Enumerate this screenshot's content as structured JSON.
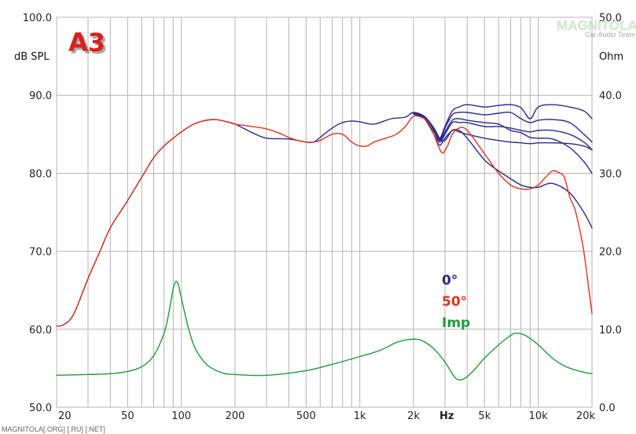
{
  "chart_data": {
    "type": "line",
    "logo": "A3",
    "watermark_top": "MAGNITOLA",
    "watermark_sub": "Car Audio Team",
    "watermark_bottom": "MAGNITOLA[.ORG] [.RU] [.NET]",
    "ylabel_left": "dB SPL",
    "ylabel_right": "Ohm",
    "xlabel": "Hz",
    "x_scale": "log",
    "xlim": [
      20,
      20000
    ],
    "ylim_left": [
      50,
      100
    ],
    "ylim_right": [
      0,
      50
    ],
    "grid": true,
    "x_ticks": [
      {
        "value": 20,
        "label": "20"
      },
      {
        "value": 50,
        "label": "50"
      },
      {
        "value": 100,
        "label": "100"
      },
      {
        "value": 200,
        "label": "200"
      },
      {
        "value": 500,
        "label": "500"
      },
      {
        "value": 1000,
        "label": "1k"
      },
      {
        "value": 2000,
        "label": "2k"
      },
      {
        "value": 5000,
        "label": "5k"
      },
      {
        "value": 10000,
        "label": "10k"
      },
      {
        "value": 20000,
        "label": "20k"
      }
    ],
    "y_ticks_left": [
      "50.0",
      "60.0",
      "70.0",
      "80.0",
      "90.0",
      "100.0"
    ],
    "y_ticks_right": [
      "0.0",
      "10.0",
      "20.0",
      "30.0",
      "40.0",
      "50.0"
    ],
    "legend": [
      {
        "label": "0°",
        "color": "#2a2a8a"
      },
      {
        "label": "50°",
        "color": "#e0341c"
      },
      {
        "label": "Imp",
        "color": "#1f9a3c"
      }
    ],
    "colors": {
      "axis_0deg": "#2a2a8a",
      "red_50deg": "#e0341c",
      "impedance": "#1f9a3c",
      "grid": "#b4b4b4",
      "logo_red": "#d8201c"
    },
    "series": [
      {
        "key": "spl_0",
        "axis": "left",
        "color": "#2a2a8a",
        "points": [
          [
            20,
            60.4
          ],
          [
            22,
            60.6
          ],
          [
            25,
            62
          ],
          [
            30,
            66.5
          ],
          [
            35,
            70
          ],
          [
            40,
            73
          ],
          [
            50,
            76.5
          ],
          [
            60,
            79.5
          ],
          [
            70,
            82
          ],
          [
            80,
            83.5
          ],
          [
            90,
            84.5
          ],
          [
            100,
            85.3
          ],
          [
            120,
            86.4
          ],
          [
            150,
            86.9
          ],
          [
            180,
            86.6
          ],
          [
            200,
            86.3
          ],
          [
            250,
            85.2
          ],
          [
            300,
            84.5
          ],
          [
            400,
            84.4
          ],
          [
            500,
            84
          ],
          [
            550,
            84
          ],
          [
            600,
            84.6
          ],
          [
            700,
            85.8
          ],
          [
            800,
            86.5
          ],
          [
            900,
            86.7
          ],
          [
            1000,
            86.6
          ],
          [
            1200,
            86.3
          ],
          [
            1500,
            87
          ],
          [
            1800,
            87.2
          ],
          [
            2000,
            87.8
          ],
          [
            2300,
            87.3
          ],
          [
            2600,
            85.8
          ],
          [
            2800,
            84.5
          ],
          [
            3000,
            84.2
          ],
          [
            3300,
            85.5
          ],
          [
            3600,
            85.3
          ],
          [
            4000,
            85
          ],
          [
            5000,
            84.5
          ],
          [
            6000,
            84.2
          ],
          [
            7000,
            84
          ],
          [
            8000,
            83.9
          ],
          [
            9000,
            83.8
          ],
          [
            10000,
            83.9
          ],
          [
            12000,
            83.9
          ],
          [
            15000,
            83.8
          ],
          [
            18000,
            83.5
          ],
          [
            20000,
            83
          ]
        ]
      },
      {
        "key": "spl_10",
        "axis": "left",
        "color": "#2a2a8a",
        "points": [
          [
            2000,
            87.7
          ],
          [
            2300,
            87.1
          ],
          [
            2600,
            85.4
          ],
          [
            2800,
            84
          ],
          [
            3000,
            85
          ],
          [
            3300,
            86.5
          ],
          [
            3600,
            86.5
          ],
          [
            4000,
            86.5
          ],
          [
            5000,
            86
          ],
          [
            6000,
            86
          ],
          [
            7000,
            85.8
          ],
          [
            8000,
            85.5
          ],
          [
            9000,
            85.3
          ],
          [
            10000,
            85.5
          ],
          [
            12000,
            85.5
          ],
          [
            15000,
            85
          ],
          [
            18000,
            84
          ],
          [
            20000,
            83
          ]
        ]
      },
      {
        "key": "spl_20",
        "axis": "left",
        "color": "#2a2a8a",
        "points": [
          [
            2000,
            87.7
          ],
          [
            2300,
            87.3
          ],
          [
            2600,
            85.8
          ],
          [
            2800,
            84.5
          ],
          [
            3000,
            86
          ],
          [
            3300,
            88
          ],
          [
            3600,
            88.5
          ],
          [
            4000,
            88.8
          ],
          [
            5000,
            88.5
          ],
          [
            6000,
            88.7
          ],
          [
            7000,
            88.8
          ],
          [
            8000,
            88.4
          ],
          [
            9000,
            87
          ],
          [
            10000,
            88.5
          ],
          [
            12000,
            88.8
          ],
          [
            15000,
            88.5
          ],
          [
            18000,
            88
          ],
          [
            20000,
            87
          ]
        ]
      },
      {
        "key": "spl_30",
        "axis": "left",
        "color": "#2a2a8a",
        "points": [
          [
            2000,
            87.7
          ],
          [
            2300,
            87.2
          ],
          [
            2600,
            85.7
          ],
          [
            2800,
            84.3
          ],
          [
            3000,
            85.8
          ],
          [
            3300,
            87.5
          ],
          [
            3600,
            87.8
          ],
          [
            4000,
            87.8
          ],
          [
            5000,
            87.5
          ],
          [
            6000,
            87.7
          ],
          [
            7000,
            87.8
          ],
          [
            8000,
            87
          ],
          [
            9000,
            86.5
          ],
          [
            10000,
            86.8
          ],
          [
            12000,
            86.9
          ],
          [
            15000,
            86.5
          ],
          [
            18000,
            85
          ],
          [
            20000,
            84
          ]
        ]
      },
      {
        "key": "spl_40",
        "axis": "left",
        "color": "#2a2a8a",
        "points": [
          [
            2000,
            87.6
          ],
          [
            2300,
            87
          ],
          [
            2600,
            85
          ],
          [
            2800,
            83.6
          ],
          [
            3000,
            84.5
          ],
          [
            3300,
            85.5
          ],
          [
            3600,
            85.5
          ],
          [
            4000,
            84.5
          ],
          [
            5000,
            81.7
          ],
          [
            6000,
            80.3
          ],
          [
            7000,
            79.3
          ],
          [
            8000,
            78.5
          ],
          [
            9000,
            78.2
          ],
          [
            10000,
            78.2
          ],
          [
            12000,
            78.7
          ],
          [
            15000,
            77.5
          ],
          [
            18000,
            75
          ],
          [
            20000,
            73
          ]
        ]
      },
      {
        "key": "spl_60",
        "axis": "left",
        "color": "#2a2a8a",
        "points": [
          [
            2000,
            87.6
          ],
          [
            2300,
            87
          ],
          [
            2600,
            85.6
          ],
          [
            2800,
            84.2
          ],
          [
            3000,
            85.3
          ],
          [
            3300,
            86.8
          ],
          [
            3600,
            87
          ],
          [
            4000,
            86.8
          ],
          [
            5000,
            86.5
          ],
          [
            6000,
            86.3
          ],
          [
            7000,
            85.5
          ],
          [
            8000,
            85.2
          ],
          [
            9000,
            84.6
          ],
          [
            10000,
            84.5
          ],
          [
            12000,
            84.4
          ],
          [
            15000,
            83.3
          ],
          [
            18000,
            81.5
          ],
          [
            20000,
            80
          ]
        ]
      },
      {
        "key": "spl_50",
        "axis": "left",
        "color": "#e0341c",
        "points": [
          [
            20,
            60.4
          ],
          [
            22,
            60.6
          ],
          [
            25,
            62
          ],
          [
            30,
            66.5
          ],
          [
            35,
            70
          ],
          [
            40,
            73
          ],
          [
            50,
            76.5
          ],
          [
            60,
            79.5
          ],
          [
            70,
            82
          ],
          [
            80,
            83.5
          ],
          [
            90,
            84.5
          ],
          [
            100,
            85.3
          ],
          [
            120,
            86.4
          ],
          [
            150,
            86.9
          ],
          [
            180,
            86.6
          ],
          [
            200,
            86.3
          ],
          [
            250,
            86
          ],
          [
            300,
            85.7
          ],
          [
            350,
            85.2
          ],
          [
            400,
            84.6
          ],
          [
            450,
            84.2
          ],
          [
            500,
            84
          ],
          [
            550,
            84
          ],
          [
            600,
            84.2
          ],
          [
            700,
            85
          ],
          [
            800,
            85
          ],
          [
            900,
            84
          ],
          [
            1000,
            83.5
          ],
          [
            1100,
            83.5
          ],
          [
            1200,
            84
          ],
          [
            1400,
            84.5
          ],
          [
            1600,
            85
          ],
          [
            1800,
            86
          ],
          [
            2000,
            87.3
          ],
          [
            2300,
            87
          ],
          [
            2500,
            86
          ],
          [
            2700,
            84
          ],
          [
            2900,
            82.6
          ],
          [
            3100,
            83.5
          ],
          [
            3300,
            85
          ],
          [
            3600,
            85.8
          ],
          [
            4000,
            85.5
          ],
          [
            5000,
            82.5
          ],
          [
            6000,
            80
          ],
          [
            7000,
            78.5
          ],
          [
            8000,
            78
          ],
          [
            9000,
            78
          ],
          [
            10000,
            78.5
          ],
          [
            11000,
            79.5
          ],
          [
            12000,
            80.3
          ],
          [
            13000,
            80.1
          ],
          [
            14000,
            79.5
          ],
          [
            15000,
            77
          ],
          [
            16000,
            75.5
          ],
          [
            17000,
            73
          ],
          [
            18000,
            70
          ],
          [
            19000,
            66
          ],
          [
            20000,
            62
          ]
        ]
      },
      {
        "key": "impedance",
        "axis": "right",
        "color": "#1f9a3c",
        "points": [
          [
            20,
            4.1
          ],
          [
            30,
            4.2
          ],
          [
            40,
            4.3
          ],
          [
            50,
            4.6
          ],
          [
            60,
            5.2
          ],
          [
            70,
            6.6
          ],
          [
            80,
            9.5
          ],
          [
            85,
            12
          ],
          [
            90,
            15.2
          ],
          [
            93,
            16.1
          ],
          [
            96,
            15.8
          ],
          [
            100,
            14
          ],
          [
            110,
            10
          ],
          [
            120,
            7.5
          ],
          [
            140,
            5.4
          ],
          [
            170,
            4.4
          ],
          [
            200,
            4.2
          ],
          [
            300,
            4.1
          ],
          [
            500,
            4.7
          ],
          [
            700,
            5.5
          ],
          [
            1000,
            6.5
          ],
          [
            1300,
            7.3
          ],
          [
            1600,
            8.3
          ],
          [
            1900,
            8.7
          ],
          [
            2200,
            8.6
          ],
          [
            2600,
            7.5
          ],
          [
            3000,
            5.8
          ],
          [
            3300,
            4.3
          ],
          [
            3500,
            3.6
          ],
          [
            3800,
            3.6
          ],
          [
            4300,
            4.6
          ],
          [
            5000,
            6.3
          ],
          [
            6000,
            8
          ],
          [
            7000,
            9.2
          ],
          [
            7500,
            9.5
          ],
          [
            8500,
            9.2
          ],
          [
            10000,
            8
          ],
          [
            12000,
            6.3
          ],
          [
            14000,
            5.3
          ],
          [
            16000,
            4.8
          ],
          [
            18000,
            4.5
          ],
          [
            20000,
            4.3
          ]
        ]
      }
    ]
  }
}
